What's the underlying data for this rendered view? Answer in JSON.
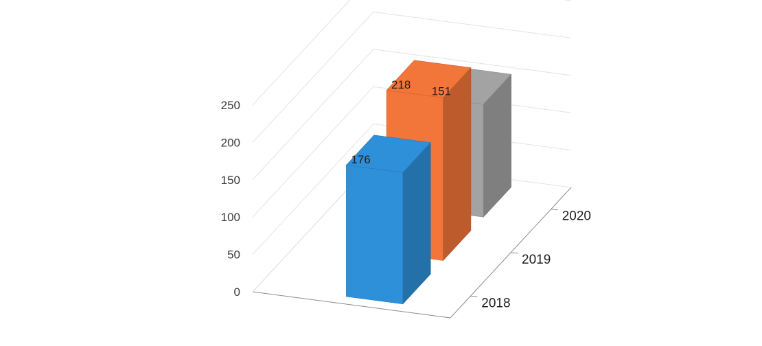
{
  "chart_data": {
    "type": "bar",
    "projection": "3d-column",
    "categories": [
      "2018",
      "2019",
      "2020"
    ],
    "values": [
      176,
      218,
      151
    ],
    "data_labels": [
      "176",
      "218",
      "151"
    ],
    "ylim": [
      0,
      250
    ],
    "y_ticks": [
      "0",
      "50",
      "100",
      "150",
      "200",
      "250"
    ],
    "grid": true,
    "legend": "none",
    "colors": [
      "#2e90d8",
      "#f2753a",
      "#a3a3a3"
    ],
    "title": "",
    "xlabel": "",
    "ylabel": ""
  }
}
